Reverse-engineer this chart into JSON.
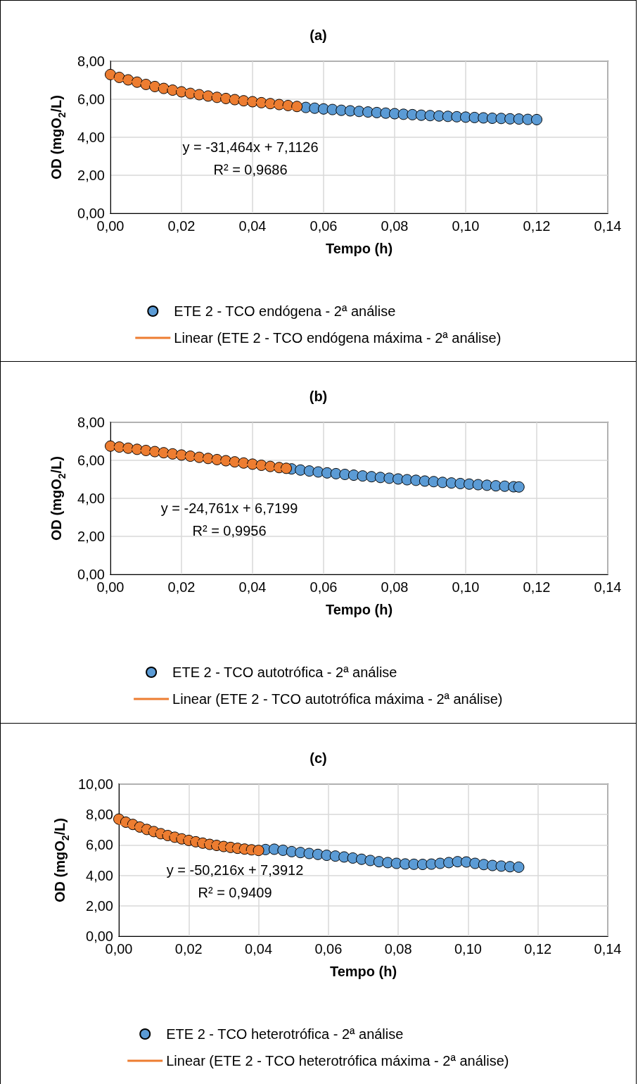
{
  "chart_data": [
    {
      "type": "scatter",
      "title": "(a)",
      "xlabel": "Tempo (h)",
      "ylabel": "OD (mgO$_{2}$/L)",
      "marker": "circle",
      "grid": true,
      "legend": "bottom",
      "xlim": [
        0,
        0.14
      ],
      "xticks": [
        {
          "value": 0,
          "label": "0,00"
        },
        {
          "value": 0.02,
          "label": "0,02"
        },
        {
          "value": 0.04,
          "label": "0,04"
        },
        {
          "value": 0.06,
          "label": "0,06"
        },
        {
          "value": 0.08,
          "label": "0,08"
        },
        {
          "value": 0.1,
          "label": "0,10"
        },
        {
          "value": 0.12,
          "label": "0,12"
        },
        {
          "value": 0.14,
          "label": "0,14"
        }
      ],
      "ylim": [
        0,
        8
      ],
      "yticks": [
        {
          "value": 0,
          "label": "0,00"
        },
        {
          "value": 2,
          "label": "2,00"
        },
        {
          "value": 4,
          "label": "4,00"
        },
        {
          "value": 6,
          "label": "6,00"
        },
        {
          "value": 8,
          "label": "8,00"
        }
      ],
      "annotations": [
        "y = -31,464x + 7,1126",
        "R² = 0,9686"
      ],
      "series": [
        {
          "name": "ETE 2 - TCO endógena - 2ª análise",
          "color": "#5b9bd5",
          "x": [
            0.055,
            0.0575,
            0.06,
            0.0625,
            0.065,
            0.0675,
            0.07,
            0.0725,
            0.075,
            0.0775,
            0.08,
            0.0825,
            0.085,
            0.0875,
            0.09,
            0.0925,
            0.095,
            0.0975,
            0.1,
            0.1025,
            0.105,
            0.1075,
            0.11,
            0.1125,
            0.115,
            0.1175,
            0.12
          ],
          "values": [
            5.57,
            5.53,
            5.49,
            5.46,
            5.42,
            5.39,
            5.36,
            5.33,
            5.3,
            5.27,
            5.24,
            5.21,
            5.19,
            5.16,
            5.14,
            5.12,
            5.1,
            5.08,
            5.06,
            5.04,
            5.02,
            5.0,
            4.99,
            4.97,
            4.96,
            4.94,
            4.93
          ]
        },
        {
          "color": "#ed7d31",
          "x": [
            0,
            0.0025,
            0.005,
            0.0075,
            0.01,
            0.0125,
            0.015,
            0.0175,
            0.02,
            0.0225,
            0.025,
            0.0275,
            0.03,
            0.0325,
            0.035,
            0.0375,
            0.04,
            0.0425,
            0.045,
            0.0475,
            0.05,
            0.0525
          ],
          "values": [
            7.3,
            7.15,
            7.02,
            6.9,
            6.78,
            6.67,
            6.57,
            6.48,
            6.39,
            6.31,
            6.24,
            6.17,
            6.1,
            6.04,
            5.98,
            5.92,
            5.87,
            5.82,
            5.77,
            5.72,
            5.67,
            5.62
          ]
        },
        {
          "type": "line",
          "name": "Linear (ETE 2 - TCO endógena máxima - 2ª análise)",
          "color": "#ed7d31",
          "marker": "none",
          "x": [
            0,
            0.0525
          ],
          "values": [
            7.11,
            5.46
          ]
        }
      ]
    },
    {
      "type": "scatter",
      "title": "(b)",
      "xlabel": "Tempo (h)",
      "ylabel": "OD (mgO$_{2}$/L)",
      "marker": "circle",
      "grid": true,
      "legend": "bottom",
      "xlim": [
        0,
        0.14
      ],
      "xticks": [
        {
          "value": 0,
          "label": "0,00"
        },
        {
          "value": 0.02,
          "label": "0,02"
        },
        {
          "value": 0.04,
          "label": "0,04"
        },
        {
          "value": 0.06,
          "label": "0,06"
        },
        {
          "value": 0.08,
          "label": "0,08"
        },
        {
          "value": 0.1,
          "label": "0,10"
        },
        {
          "value": 0.12,
          "label": "0,12"
        },
        {
          "value": 0.14,
          "label": "0,14"
        }
      ],
      "ylim": [
        0,
        8
      ],
      "yticks": [
        {
          "value": 0,
          "label": "0,00"
        },
        {
          "value": 2,
          "label": "2,00"
        },
        {
          "value": 4,
          "label": "4,00"
        },
        {
          "value": 6,
          "label": "6,00"
        },
        {
          "value": 8,
          "label": "8,00"
        }
      ],
      "annotations": [
        "y = -24,761x + 6,7199",
        "R² = 0,9956"
      ],
      "series": [
        {
          "name": "ETE 2 - TCO autotrófica - 2ª análise",
          "color": "#5b9bd5",
          "x": [
            0.051,
            0.0535,
            0.056,
            0.0585,
            0.061,
            0.0635,
            0.066,
            0.0685,
            0.071,
            0.0735,
            0.076,
            0.0785,
            0.081,
            0.0835,
            0.086,
            0.0885,
            0.091,
            0.0935,
            0.096,
            0.0985,
            0.101,
            0.1035,
            0.106,
            0.1085,
            0.111,
            0.1135,
            0.115
          ],
          "values": [
            5.55,
            5.49,
            5.44,
            5.39,
            5.34,
            5.3,
            5.26,
            5.22,
            5.18,
            5.14,
            5.1,
            5.06,
            5.02,
            4.98,
            4.95,
            4.91,
            4.88,
            4.84,
            4.81,
            4.78,
            4.75,
            4.72,
            4.69,
            4.66,
            4.64,
            4.61,
            4.6
          ]
        },
        {
          "color": "#ed7d31",
          "x": [
            0,
            0.0025,
            0.005,
            0.0075,
            0.01,
            0.0125,
            0.015,
            0.0175,
            0.02,
            0.0225,
            0.025,
            0.0275,
            0.03,
            0.0325,
            0.035,
            0.0375,
            0.04,
            0.0425,
            0.045,
            0.0475,
            0.0495
          ],
          "values": [
            6.75,
            6.7,
            6.64,
            6.58,
            6.52,
            6.46,
            6.4,
            6.34,
            6.28,
            6.22,
            6.16,
            6.1,
            6.04,
            5.98,
            5.92,
            5.86,
            5.8,
            5.74,
            5.68,
            5.62,
            5.58
          ]
        },
        {
          "type": "line",
          "name": "Linear (ETE 2 - TCO autotrófica máxima - 2ª análise)",
          "color": "#ed7d31",
          "marker": "none",
          "x": [
            0,
            0.049
          ],
          "values": [
            6.72,
            5.51
          ]
        }
      ]
    },
    {
      "type": "scatter",
      "title": "(c)",
      "xlabel": "Tempo (h)",
      "ylabel": "OD (mgO$_{2}$/L)",
      "marker": "circle",
      "grid": true,
      "legend": "bottom",
      "xlim": [
        0,
        0.14
      ],
      "xticks": [
        {
          "value": 0,
          "label": "0,00"
        },
        {
          "value": 0.02,
          "label": "0,02"
        },
        {
          "value": 0.04,
          "label": "0,04"
        },
        {
          "value": 0.06,
          "label": "0,06"
        },
        {
          "value": 0.08,
          "label": "0,08"
        },
        {
          "value": 0.1,
          "label": "0,10"
        },
        {
          "value": 0.12,
          "label": "0,12"
        },
        {
          "value": 0.14,
          "label": "0,14"
        }
      ],
      "ylim": [
        0,
        10
      ],
      "yticks": [
        {
          "value": 0,
          "label": "0,00"
        },
        {
          "value": 2,
          "label": "2,00"
        },
        {
          "value": 4,
          "label": "4,00"
        },
        {
          "value": 6,
          "label": "6,00"
        },
        {
          "value": 8,
          "label": "8,00"
        },
        {
          "value": 10,
          "label": "10,00"
        }
      ],
      "annotations": [
        "y = -50,216x + 7,3912",
        "R² = 0,9409"
      ],
      "series": [
        {
          "name": "ETE 2 - TCO heterotrófica - 2ª análise",
          "color": "#5b9bd5",
          "x": [
            0.042,
            0.0445,
            0.047,
            0.0495,
            0.052,
            0.0545,
            0.057,
            0.0595,
            0.062,
            0.0645,
            0.067,
            0.0695,
            0.072,
            0.0745,
            0.077,
            0.0795,
            0.082,
            0.0845,
            0.087,
            0.0895,
            0.092,
            0.0945,
            0.097,
            0.0995,
            0.102,
            0.1045,
            0.107,
            0.1095,
            0.112,
            0.1145
          ],
          "values": [
            5.7,
            5.72,
            5.65,
            5.56,
            5.5,
            5.44,
            5.38,
            5.32,
            5.27,
            5.21,
            5.14,
            5.06,
            4.98,
            4.9,
            4.84,
            4.79,
            4.75,
            4.73,
            4.72,
            4.74,
            4.79,
            4.84,
            4.9,
            4.88,
            4.79,
            4.71,
            4.65,
            4.61,
            4.57,
            4.54
          ]
        },
        {
          "color": "#ed7d31",
          "x": [
            0,
            0.002,
            0.004,
            0.006,
            0.008,
            0.01,
            0.012,
            0.014,
            0.016,
            0.018,
            0.02,
            0.022,
            0.024,
            0.026,
            0.028,
            0.03,
            0.032,
            0.034,
            0.036,
            0.038,
            0.04
          ],
          "values": [
            7.7,
            7.5,
            7.35,
            7.18,
            7.02,
            6.88,
            6.74,
            6.62,
            6.51,
            6.4,
            6.3,
            6.21,
            6.12,
            6.04,
            5.97,
            5.9,
            5.84,
            5.78,
            5.73,
            5.68,
            5.64
          ]
        },
        {
          "type": "line",
          "name": "Linear (ETE 2 - TCO heterotrófica máxima - 2ª análise)",
          "color": "#ed7d31",
          "marker": "none",
          "x": [
            0,
            0.04
          ],
          "values": [
            7.39,
            5.38
          ]
        }
      ]
    }
  ]
}
